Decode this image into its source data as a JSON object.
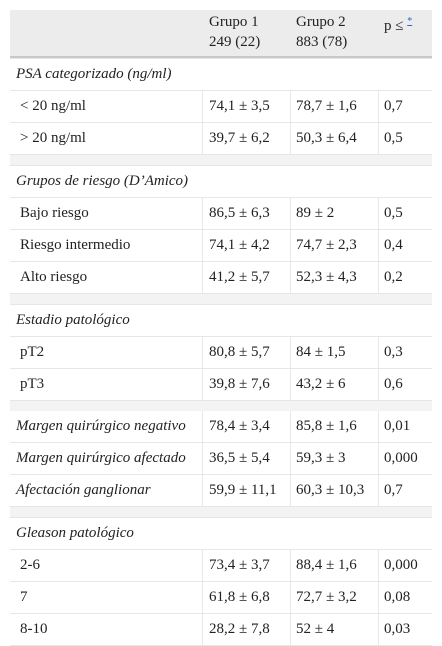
{
  "header": {
    "col1_l1": "Grupo 1",
    "col1_l2": "249 (22)",
    "col2_l1": "Grupo 2",
    "col2_l2": "883 (78)",
    "p_label": "p ≤",
    "p_ref": "*"
  },
  "sections": {
    "psa": "PSA categorizado (ng/ml)",
    "riesgo": "Grupos de riesgo (D’Amico)",
    "estadio": "Estadio patológico",
    "gleason": "Gleason patológico"
  },
  "rows": {
    "psa_lt20": [
      "< 20 ng/ml",
      "74,1 ± 3,5",
      "78,7 ± 1,6",
      "0,7"
    ],
    "psa_gt20": [
      "> 20 ng/ml",
      "39,7 ± 6,2",
      "50,3 ± 6,4",
      "0,5"
    ],
    "bajo": [
      "Bajo riesgo",
      "86,5 ± 6,3",
      "89 ± 2",
      "0,5"
    ],
    "intermedio": [
      "Riesgo intermedio",
      "74,1 ± 4,2",
      "74,7 ± 2,3",
      "0,4"
    ],
    "alto": [
      "Alto riesgo",
      "41,2 ± 5,7",
      "52,3 ± 4,3",
      "0,2"
    ],
    "pt2": [
      "pT2",
      "80,8 ± 5,7",
      "84 ± 1,5",
      "0,3"
    ],
    "pt3": [
      "pT3",
      "39,8 ± 7,6",
      "43,2 ± 6",
      "0,6"
    ],
    "margen_neg": [
      "Margen quirúrgico negativo",
      "78,4 ± 3,4",
      "85,8 ± 1,6",
      "0,01"
    ],
    "margen_afect": [
      "Margen quirúrgico afectado",
      "36,5 ± 5,4",
      "59,3 ± 3",
      "0,000"
    ],
    "ganglionar": [
      "Afectación ganglionar",
      "59,9 ± 11,1",
      "60,3 ± 10,3",
      "0,7"
    ],
    "g26": [
      "2-6",
      "73,4 ± 3,7",
      "88,4 ± 1,6",
      "0,000"
    ],
    "g7": [
      "7",
      "61,8 ± 6,8",
      "72,7 ± 3,2",
      "0,08"
    ],
    "g810": [
      "8-10",
      "28,2 ± 7,8",
      "52 ± 4",
      "0,03"
    ]
  }
}
